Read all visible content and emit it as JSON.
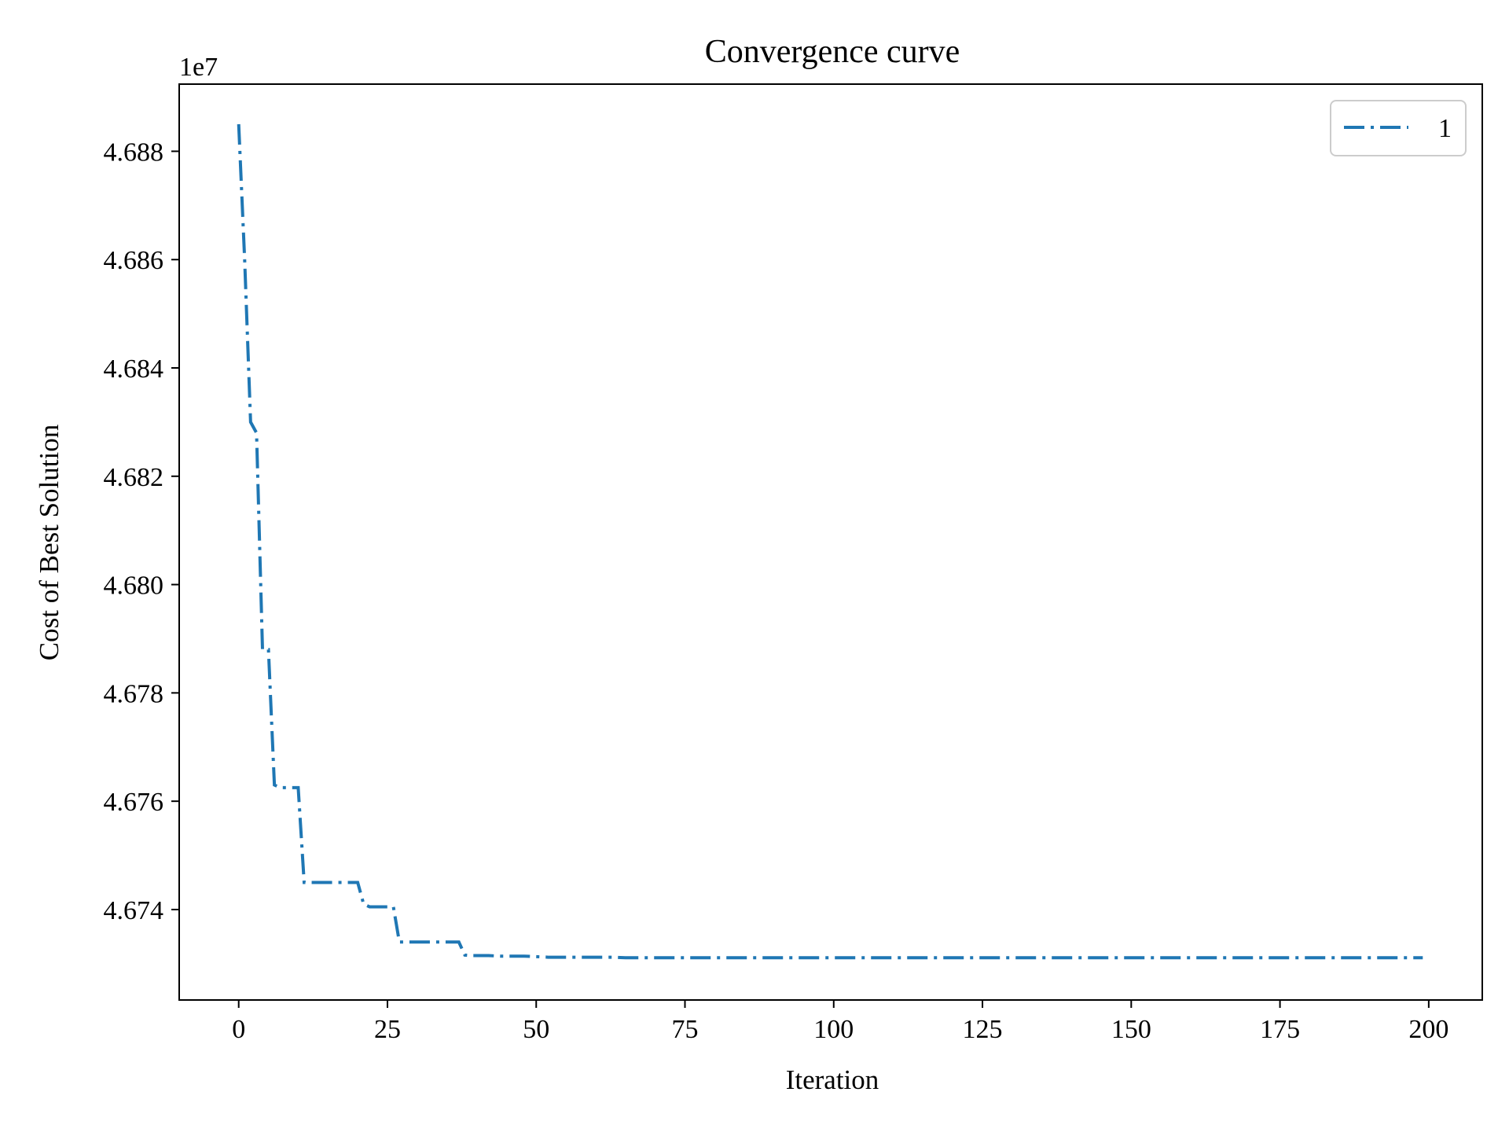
{
  "chart_data": {
    "type": "line",
    "title": "Convergence curve",
    "xlabel": "Iteration",
    "ylabel": "Cost of Best Solution",
    "offset_label": "1e7",
    "y_scale_factor": 10000000,
    "xlim": [
      -10,
      209
    ],
    "ylim": [
      4.67233,
      4.68924
    ],
    "x_ticks": [
      0,
      25,
      50,
      75,
      100,
      125,
      150,
      175,
      200
    ],
    "y_ticks": [
      4.674,
      4.676,
      4.678,
      4.68,
      4.682,
      4.684,
      4.686,
      4.688
    ],
    "y_tick_labels": [
      "4.674",
      "4.676",
      "4.678",
      "4.680",
      "4.682",
      "4.684",
      "4.686",
      "4.688"
    ],
    "grid": false,
    "legend_position": "top-right",
    "line_style": "dash-dot",
    "series": [
      {
        "name": "1",
        "color": "#1f77b4",
        "x": [
          0,
          1,
          2,
          3,
          4,
          5,
          6,
          7,
          8,
          9,
          10,
          11,
          12,
          13,
          14,
          15,
          16,
          17,
          18,
          19,
          20,
          21,
          22,
          23,
          24,
          25,
          26,
          27,
          28,
          29,
          30,
          31,
          32,
          33,
          34,
          35,
          36,
          37,
          38,
          39,
          40,
          42,
          44,
          46,
          48,
          50,
          52,
          55,
          60,
          63,
          65,
          70,
          80,
          90,
          100,
          110,
          120,
          130,
          140,
          150,
          160,
          170,
          180,
          190,
          199
        ],
        "y": [
          4.6885,
          4.686,
          4.683,
          4.6828,
          4.6788,
          4.6788,
          4.6763,
          4.67625,
          4.67625,
          4.67625,
          4.67625,
          4.6745,
          4.6745,
          4.6745,
          4.6745,
          4.6745,
          4.6745,
          4.6745,
          4.6745,
          4.6745,
          4.6745,
          4.6741,
          4.67405,
          4.67405,
          4.67405,
          4.67405,
          4.67405,
          4.6734,
          4.6734,
          4.6734,
          4.6734,
          4.6734,
          4.6734,
          4.6734,
          4.6734,
          4.6734,
          4.6734,
          4.6734,
          4.67316,
          4.67315,
          4.67315,
          4.67315,
          4.67314,
          4.67314,
          4.67314,
          4.67313,
          4.67312,
          4.67312,
          4.67312,
          4.67312,
          4.67311,
          4.67311,
          4.67311,
          4.67311,
          4.67311,
          4.67311,
          4.67311,
          4.67311,
          4.67311,
          4.67311,
          4.67311,
          4.67311,
          4.67311,
          4.67311,
          4.67311
        ]
      }
    ]
  }
}
